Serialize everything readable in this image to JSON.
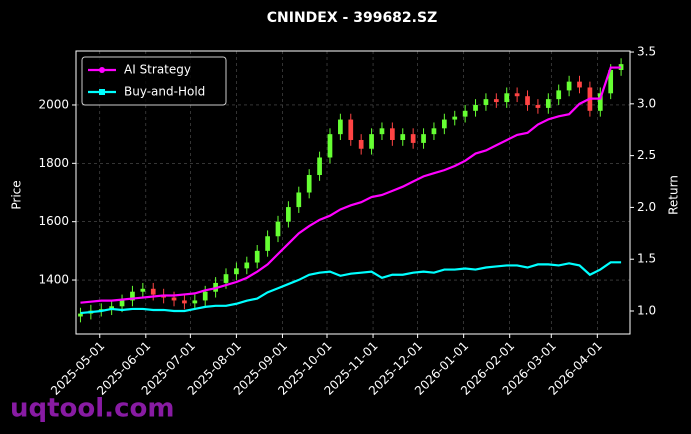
{
  "chart_data": {
    "type": "candlestick",
    "title": "CNINDEX - 399682.SZ",
    "y_label": "Price",
    "y2_label": "Return",
    "watermark": "uqtool.com",
    "x": [
      "2025-04-18",
      "2025-04-25",
      "2025-05-02",
      "2025-05-09",
      "2025-05-16",
      "2025-05-23",
      "2025-05-30",
      "2025-06-06",
      "2025-06-13",
      "2025-06-20",
      "2025-06-27",
      "2025-07-04",
      "2025-07-11",
      "2025-07-18",
      "2025-07-25",
      "2025-08-01",
      "2025-08-08",
      "2025-08-15",
      "2025-08-22",
      "2025-08-29",
      "2025-09-05",
      "2025-09-12",
      "2025-09-19",
      "2025-09-26",
      "2025-10-03",
      "2025-10-10",
      "2025-10-17",
      "2025-10-24",
      "2025-10-31",
      "2025-11-07",
      "2025-11-14",
      "2025-11-21",
      "2025-11-28",
      "2025-12-05",
      "2025-12-12",
      "2025-12-19",
      "2025-12-26",
      "2026-01-02",
      "2026-01-09",
      "2026-01-16",
      "2026-01-23",
      "2026-01-30",
      "2026-02-06",
      "2026-02-13",
      "2026-02-20",
      "2026-02-27",
      "2026-03-06",
      "2026-03-13",
      "2026-03-20",
      "2026-03-27",
      "2026-04-03",
      "2026-04-10",
      "2026-04-17"
    ],
    "open": [
      1275,
      1285,
      1295,
      1300,
      1310,
      1330,
      1360,
      1370,
      1350,
      1340,
      1330,
      1320,
      1330,
      1360,
      1390,
      1420,
      1440,
      1460,
      1500,
      1550,
      1600,
      1650,
      1700,
      1760,
      1820,
      1900,
      1950,
      1880,
      1850,
      1900,
      1920,
      1880,
      1900,
      1870,
      1900,
      1920,
      1950,
      1960,
      1980,
      2000,
      2020,
      2010,
      2040,
      2030,
      2000,
      1990,
      2020,
      2050,
      2080,
      2060,
      1980,
      2040,
      2120
    ],
    "high": [
      1305,
      1315,
      1320,
      1330,
      1350,
      1380,
      1390,
      1390,
      1370,
      1360,
      1350,
      1350,
      1380,
      1410,
      1440,
      1460,
      1480,
      1520,
      1570,
      1620,
      1670,
      1720,
      1780,
      1840,
      1920,
      1970,
      1970,
      1900,
      1920,
      1940,
      1940,
      1920,
      1920,
      1920,
      1940,
      1970,
      1980,
      2000,
      2020,
      2040,
      2040,
      2060,
      2060,
      2050,
      2020,
      2040,
      2070,
      2100,
      2100,
      2080,
      2060,
      2140,
      2160
    ],
    "low": [
      1255,
      1265,
      1275,
      1280,
      1290,
      1310,
      1340,
      1330,
      1320,
      1310,
      1300,
      1300,
      1310,
      1340,
      1370,
      1400,
      1420,
      1440,
      1480,
      1530,
      1580,
      1630,
      1680,
      1740,
      1800,
      1880,
      1860,
      1830,
      1830,
      1880,
      1860,
      1860,
      1850,
      1850,
      1880,
      1900,
      1930,
      1940,
      1960,
      1980,
      1990,
      1990,
      2010,
      1980,
      1970,
      1970,
      2000,
      2030,
      2040,
      1960,
      1960,
      2020,
      2100
    ],
    "close": [
      1285,
      1295,
      1300,
      1310,
      1330,
      1360,
      1370,
      1350,
      1340,
      1330,
      1320,
      1330,
      1360,
      1390,
      1420,
      1440,
      1460,
      1500,
      1550,
      1600,
      1650,
      1700,
      1760,
      1820,
      1900,
      1950,
      1880,
      1850,
      1900,
      1920,
      1880,
      1900,
      1870,
      1900,
      1920,
      1950,
      1960,
      1980,
      2000,
      2020,
      2010,
      2040,
      2030,
      2000,
      1990,
      2020,
      2050,
      2080,
      2060,
      1980,
      2040,
      2120,
      2140
    ],
    "up_color": "#66ff33",
    "down_color": "#ff4444",
    "series": [
      {
        "name": "AI Strategy",
        "color": "#ff00ff",
        "axis": "y2",
        "marker": "circle",
        "values": [
          1.08,
          1.09,
          1.1,
          1.1,
          1.11,
          1.12,
          1.13,
          1.14,
          1.15,
          1.15,
          1.16,
          1.17,
          1.2,
          1.22,
          1.25,
          1.28,
          1.32,
          1.38,
          1.45,
          1.55,
          1.65,
          1.75,
          1.82,
          1.88,
          1.92,
          1.98,
          2.02,
          2.05,
          2.1,
          2.12,
          2.16,
          2.2,
          2.25,
          2.3,
          2.33,
          2.36,
          2.4,
          2.45,
          2.52,
          2.55,
          2.6,
          2.65,
          2.7,
          2.72,
          2.8,
          2.85,
          2.88,
          2.9,
          3.0,
          3.05,
          3.05,
          3.35,
          3.35
        ]
      },
      {
        "name": "Buy-and-Hold",
        "color": "#00ffff",
        "axis": "y2",
        "marker": "square",
        "values": [
          0.98,
          0.99,
          1.0,
          1.02,
          1.01,
          1.02,
          1.02,
          1.01,
          1.01,
          1.0,
          1.0,
          1.02,
          1.04,
          1.05,
          1.05,
          1.07,
          1.1,
          1.12,
          1.18,
          1.22,
          1.26,
          1.3,
          1.35,
          1.37,
          1.38,
          1.34,
          1.36,
          1.37,
          1.38,
          1.32,
          1.35,
          1.35,
          1.37,
          1.38,
          1.37,
          1.4,
          1.4,
          1.41,
          1.4,
          1.42,
          1.43,
          1.44,
          1.44,
          1.42,
          1.45,
          1.45,
          1.44,
          1.46,
          1.44,
          1.35,
          1.4,
          1.47,
          1.47
        ]
      }
    ],
    "xlim": [
      "2025-04-15",
      "2026-04-23"
    ],
    "xticks": [
      "2025-05-01",
      "2025-06-01",
      "2025-07-01",
      "2025-08-01",
      "2025-09-01",
      "2025-10-01",
      "2025-11-01",
      "2025-12-01",
      "2026-01-01",
      "2026-02-01",
      "2026-03-01",
      "2026-04-01"
    ],
    "ylim": [
      1215,
      2185
    ],
    "yticks": [
      1400,
      1600,
      1800,
      2000
    ],
    "y2lim": [
      0.778,
      3.51
    ],
    "y2ticks": [
      {
        "value": 1,
        "label": "1.0"
      },
      {
        "value": 1.5,
        "label": "1.5"
      },
      {
        "value": 2,
        "label": "2.0"
      },
      {
        "value": 2.5,
        "label": "2.5"
      },
      {
        "value": 3,
        "label": "3.0"
      },
      {
        "value": 3.5,
        "label": "3.5"
      }
    ],
    "grid": true,
    "legend": "upper left"
  }
}
